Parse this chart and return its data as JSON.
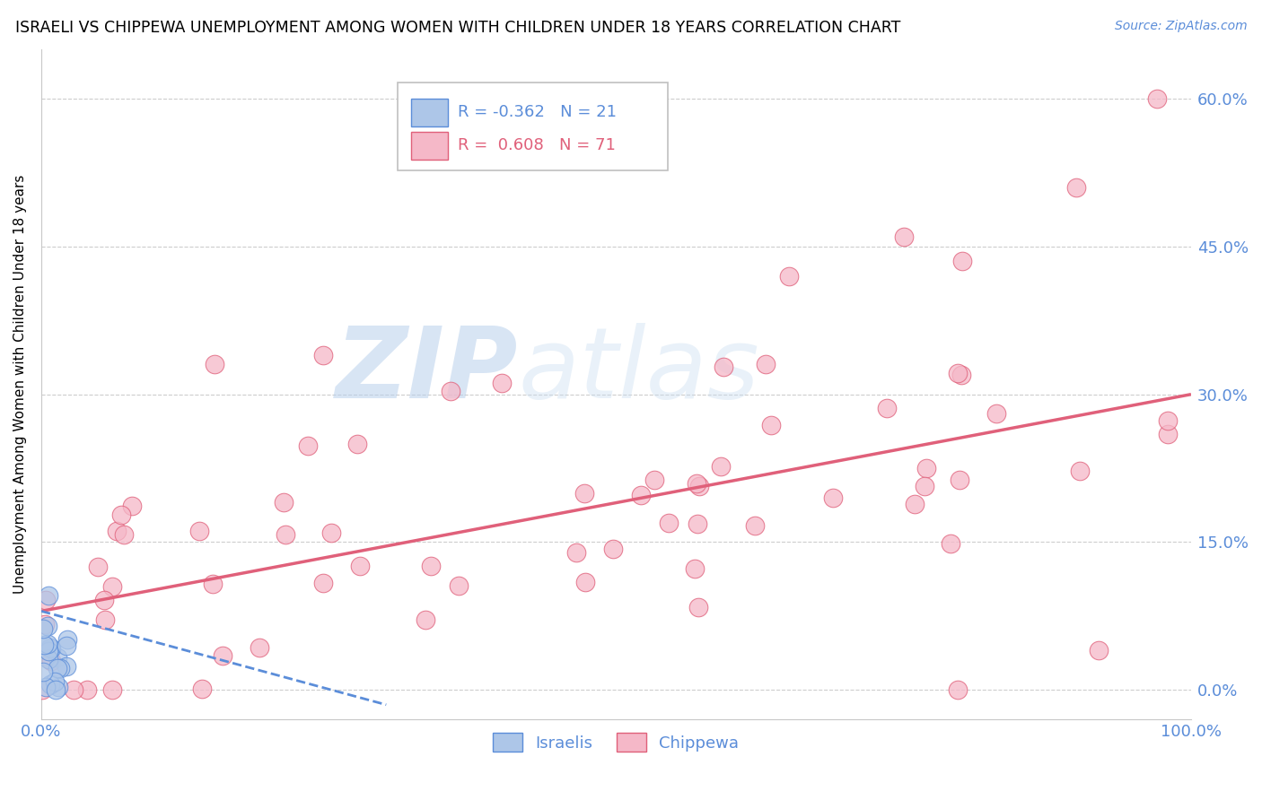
{
  "title": "ISRAELI VS CHIPPEWA UNEMPLOYMENT AMONG WOMEN WITH CHILDREN UNDER 18 YEARS CORRELATION CHART",
  "source": "Source: ZipAtlas.com",
  "ylabel": "Unemployment Among Women with Children Under 18 years",
  "xlim": [
    0,
    100
  ],
  "ylim": [
    -3,
    65
  ],
  "yticks": [
    0,
    15,
    30,
    45,
    60
  ],
  "ytick_labels": [
    "",
    "",
    "",
    "",
    ""
  ],
  "right_ytick_labels": [
    "0.0%",
    "15.0%",
    "30.0%",
    "45.0%",
    "60.0%"
  ],
  "xtick_labels": [
    "0.0%",
    "100.0%"
  ],
  "legend_r_israeli": "-0.362",
  "legend_n_israeli": "21",
  "legend_r_chippewa": "0.608",
  "legend_n_chippewa": "71",
  "legend_label_israeli": "Israelis",
  "legend_label_chippewa": "Chippewa",
  "israeli_color": "#adc6e8",
  "chippewa_color": "#f5b8c8",
  "israeli_line_color": "#5b8dd9",
  "chippewa_line_color": "#e0607a",
  "watermark_zip": "ZIP",
  "watermark_atlas": "atlas",
  "background_color": "#ffffff",
  "chippewa_line_x0": 0,
  "chippewa_line_y0": 8.0,
  "chippewa_line_x1": 100,
  "chippewa_line_y1": 30.0,
  "israeli_line_x0": 0,
  "israeli_line_y0": 8.0,
  "israeli_line_x1": 30,
  "israeli_line_y1": -1.5
}
